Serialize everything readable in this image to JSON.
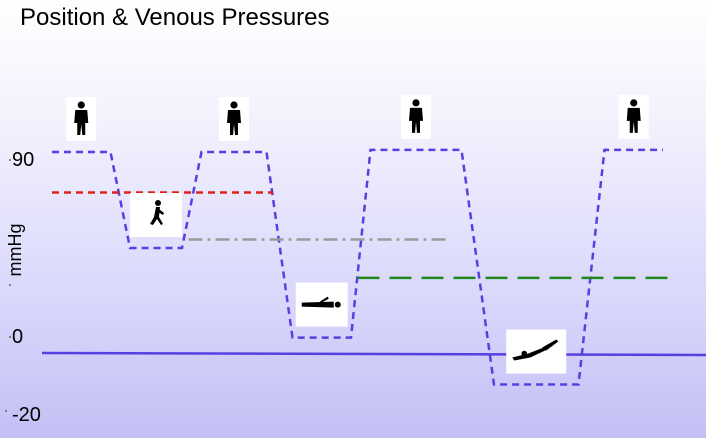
{
  "title": "Position & Venous Pressures",
  "chart_data": {
    "type": "line",
    "title": "Position & Venous Pressures",
    "ylabel": "mmHg",
    "xlabel": "",
    "yticks": [
      90,
      0,
      -20
    ],
    "ytick_labels": [
      "90",
      "0",
      "-20"
    ],
    "ylim": [
      -20,
      90
    ],
    "xlim": [
      0,
      100
    ],
    "positions": [
      "standing",
      "running",
      "standing",
      "lying",
      "standing",
      "diving",
      "standing"
    ],
    "series": [
      {
        "name": "venous pressure",
        "color": "#5a3fe0",
        "style": "dashed",
        "points": [
          [
            0,
            90
          ],
          [
            9,
            90
          ],
          [
            12,
            45
          ],
          [
            20,
            45
          ],
          [
            23,
            90
          ],
          [
            33,
            90
          ],
          [
            37,
            3
          ],
          [
            46,
            3
          ],
          [
            49,
            91
          ],
          [
            63,
            91
          ],
          [
            68,
            -19
          ],
          [
            81,
            -19
          ],
          [
            85,
            91
          ],
          [
            94,
            91
          ]
        ]
      },
      {
        "name": "red reference",
        "color": "#e0201c",
        "style": "dashed",
        "points": [
          [
            0,
            71
          ],
          [
            34,
            71
          ]
        ]
      },
      {
        "name": "gray reference",
        "color": "#9a9a9a",
        "style": "dashdot",
        "points": [
          [
            21,
            49
          ],
          [
            61,
            49
          ]
        ]
      },
      {
        "name": "green reference",
        "color": "#1e8a1e",
        "style": "longdash",
        "points": [
          [
            47,
            31
          ],
          [
            95,
            31
          ]
        ]
      }
    ]
  },
  "icons": [
    {
      "name": "standing-person-icon",
      "glyph": "stand"
    },
    {
      "name": "running-person-icon",
      "glyph": "run"
    },
    {
      "name": "standing-person-icon",
      "glyph": "stand"
    },
    {
      "name": "lying-person-icon",
      "glyph": "lie"
    },
    {
      "name": "standing-person-icon",
      "glyph": "stand"
    },
    {
      "name": "diving-person-icon",
      "glyph": "dive"
    },
    {
      "name": "standing-person-icon",
      "glyph": "stand"
    }
  ]
}
